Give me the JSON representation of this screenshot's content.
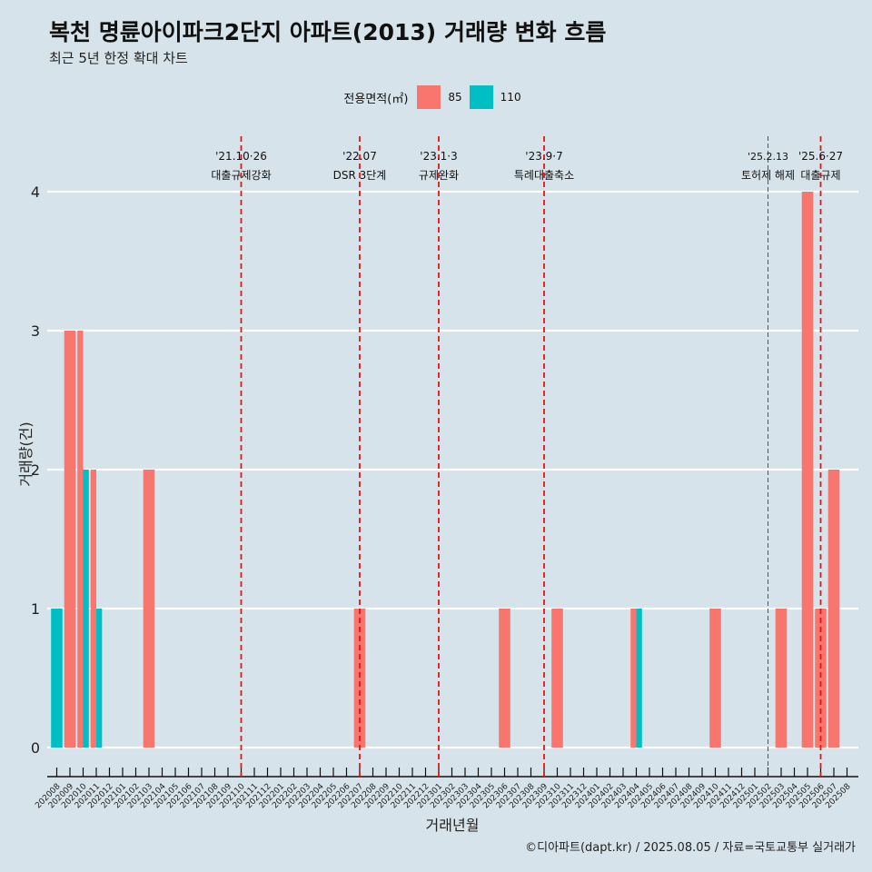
{
  "title": "복천 명륜아이파크2단지 아파트(2013) 거래량 변화 흐름",
  "subtitle": "최근 5년 한정 확대 차트",
  "caption": "©디아파트(dapt.kr) / 2025.08.05 / 자료=국토교통부 실거래가",
  "legend": {
    "title": "전용면적(㎡)",
    "items": [
      {
        "label": "85",
        "color": "#F8766D"
      },
      {
        "label": "110",
        "color": "#00BFC4"
      }
    ]
  },
  "chart_data": {
    "type": "bar",
    "xlabel": "거래년월",
    "ylabel": "거래량(건)",
    "ylim": [
      0,
      4
    ],
    "yticks": [
      0,
      1,
      2,
      3,
      4
    ],
    "grid": true,
    "legend_position": "top",
    "categories": [
      "202008",
      "202009",
      "202010",
      "202011",
      "202012",
      "202101",
      "202102",
      "202103",
      "202104",
      "202105",
      "202106",
      "202107",
      "202108",
      "202109",
      "202110",
      "202111",
      "202112",
      "202201",
      "202202",
      "202203",
      "202204",
      "202205",
      "202206",
      "202207",
      "202208",
      "202209",
      "202210",
      "202211",
      "202212",
      "202301",
      "202302",
      "202303",
      "202304",
      "202305",
      "202306",
      "202307",
      "202308",
      "202309",
      "202310",
      "202311",
      "202312",
      "202401",
      "202402",
      "202403",
      "202404",
      "202405",
      "202406",
      "202407",
      "202408",
      "202409",
      "202410",
      "202411",
      "202412",
      "202501",
      "202502",
      "202503",
      "202504",
      "202505",
      "202506",
      "202507",
      "202508"
    ],
    "series": [
      {
        "name": "85",
        "color": "#F8766D",
        "points": [
          {
            "x": "202009",
            "y": 3
          },
          {
            "x": "202010",
            "y": 3
          },
          {
            "x": "202011",
            "y": 2
          },
          {
            "x": "202103",
            "y": 2
          },
          {
            "x": "202207",
            "y": 1
          },
          {
            "x": "202306",
            "y": 1
          },
          {
            "x": "202310",
            "y": 1
          },
          {
            "x": "202404",
            "y": 1
          },
          {
            "x": "202410",
            "y": 1
          },
          {
            "x": "202503",
            "y": 1
          },
          {
            "x": "202505",
            "y": 4
          },
          {
            "x": "202506",
            "y": 1
          },
          {
            "x": "202507",
            "y": 2
          }
        ]
      },
      {
        "name": "110",
        "color": "#00BFC4",
        "points": [
          {
            "x": "202008",
            "y": 1
          },
          {
            "x": "202010",
            "y": 2
          },
          {
            "x": "202011",
            "y": 1
          },
          {
            "x": "202404",
            "y": 1
          }
        ]
      }
    ],
    "annotations": [
      {
        "x": "202110",
        "date": "'21.10·26",
        "label": "대출규제강화",
        "style": "dashed"
      },
      {
        "x": "202207",
        "date": "'22.07",
        "label": "DSR 3단계",
        "style": "dashed"
      },
      {
        "x": "202301",
        "date": "'23.1·3",
        "label": "규제완화",
        "style": "dashed"
      },
      {
        "x": "202309",
        "date": "'23.9·7",
        "label": "특례대출축소",
        "style": "dashed"
      },
      {
        "x": "202502",
        "date": "'25.2.13",
        "label": "토허제 해제",
        "style": "thin"
      },
      {
        "x": "202506",
        "date": "'25.6·27",
        "label": "대출규제",
        "style": "dashed"
      }
    ]
  }
}
